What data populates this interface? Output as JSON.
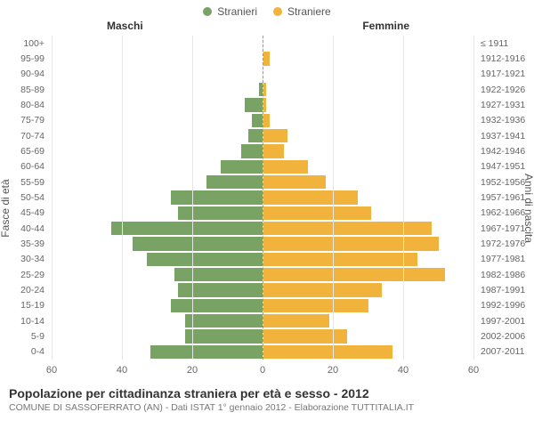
{
  "legend": {
    "male": {
      "label": "Stranieri",
      "color": "#79a365"
    },
    "female": {
      "label": "Straniere",
      "color": "#f1b33c"
    }
  },
  "headers": {
    "maschi": "Maschi",
    "femmine": "Femmine"
  },
  "axes": {
    "y_left_title": "Fasce di età",
    "y_right_title": "Anni di nascita",
    "x_max": 60,
    "x_ticks": [
      60,
      40,
      20,
      0,
      20,
      40,
      60
    ],
    "grid_color": "#e6e6e6",
    "centerline_color": "#999999"
  },
  "chart": {
    "type": "population-pyramid",
    "male_color": "#79a365",
    "female_color": "#f1b33c",
    "background_color": "#ffffff",
    "label_fontsize": 10.5,
    "rows": [
      {
        "age": "100+",
        "birth": "≤ 1911",
        "m": 0,
        "f": 0
      },
      {
        "age": "95-99",
        "birth": "1912-1916",
        "m": 0,
        "f": 2
      },
      {
        "age": "90-94",
        "birth": "1917-1921",
        "m": 0,
        "f": 0
      },
      {
        "age": "85-89",
        "birth": "1922-1926",
        "m": 1,
        "f": 1
      },
      {
        "age": "80-84",
        "birth": "1927-1931",
        "m": 5,
        "f": 1
      },
      {
        "age": "75-79",
        "birth": "1932-1936",
        "m": 3,
        "f": 2
      },
      {
        "age": "70-74",
        "birth": "1937-1941",
        "m": 4,
        "f": 7
      },
      {
        "age": "65-69",
        "birth": "1942-1946",
        "m": 6,
        "f": 6
      },
      {
        "age": "60-64",
        "birth": "1947-1951",
        "m": 12,
        "f": 13
      },
      {
        "age": "55-59",
        "birth": "1952-1956",
        "m": 16,
        "f": 18
      },
      {
        "age": "50-54",
        "birth": "1957-1961",
        "m": 26,
        "f": 27
      },
      {
        "age": "45-49",
        "birth": "1962-1966",
        "m": 24,
        "f": 31
      },
      {
        "age": "40-44",
        "birth": "1967-1971",
        "m": 43,
        "f": 48
      },
      {
        "age": "35-39",
        "birth": "1972-1976",
        "m": 37,
        "f": 50
      },
      {
        "age": "30-34",
        "birth": "1977-1981",
        "m": 33,
        "f": 44
      },
      {
        "age": "25-29",
        "birth": "1982-1986",
        "m": 25,
        "f": 52
      },
      {
        "age": "20-24",
        "birth": "1987-1991",
        "m": 24,
        "f": 34
      },
      {
        "age": "15-19",
        "birth": "1992-1996",
        "m": 26,
        "f": 30
      },
      {
        "age": "10-14",
        "birth": "1997-2001",
        "m": 22,
        "f": 19
      },
      {
        "age": "5-9",
        "birth": "2002-2006",
        "m": 22,
        "f": 24
      },
      {
        "age": "0-4",
        "birth": "2007-2011",
        "m": 32,
        "f": 37
      }
    ]
  },
  "footer": {
    "title": "Popolazione per cittadinanza straniera per età e sesso - 2012",
    "subtitle": "COMUNE DI SASSOFERRATO (AN) - Dati ISTAT 1° gennaio 2012 - Elaborazione TUTTITALIA.IT"
  }
}
